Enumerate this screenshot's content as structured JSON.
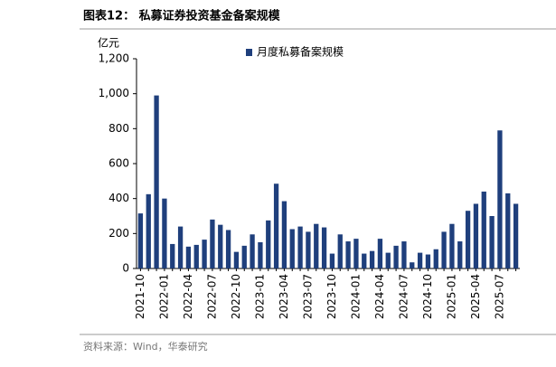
{
  "chart_data": {
    "type": "bar",
    "title": "图表12：  私募证券投资基金备案规模",
    "y_label": "亿元",
    "source": "资料来源：Wind，华泰研究",
    "categories": [
      "2021-10",
      null,
      null,
      "2022-01",
      null,
      null,
      "2022-04",
      null,
      null,
      "2022-07",
      null,
      null,
      "2022-10",
      null,
      null,
      "2023-01",
      null,
      null,
      "2023-04",
      null,
      null,
      "2023-07",
      null,
      null,
      "2023-10",
      null,
      null,
      "2024-01",
      null,
      null,
      "2024-04",
      null,
      null,
      "2024-07",
      null,
      null,
      "2024-10",
      null,
      null,
      "2025-01",
      null,
      null,
      "2025-04",
      null,
      null,
      "2025-07",
      null,
      null
    ],
    "series": [
      {
        "name": "月度私募备案规模",
        "color": "#1f3f7c",
        "values": [
          315,
          425,
          990,
          400,
          140,
          240,
          125,
          135,
          165,
          280,
          250,
          220,
          95,
          130,
          195,
          150,
          275,
          485,
          385,
          225,
          240,
          210,
          255,
          235,
          85,
          195,
          155,
          170,
          85,
          100,
          170,
          90,
          130,
          155,
          35,
          90,
          80,
          110,
          210,
          255,
          155,
          330,
          370,
          440,
          300,
          790,
          430,
          370
        ]
      }
    ],
    "ylim": [
      0,
      1200
    ],
    "yticks": [
      0,
      200,
      400,
      600,
      800,
      {
        "value": 1000,
        "label": "1,000"
      },
      {
        "value": 1200,
        "label": "1,200"
      }
    ],
    "legend": "top"
  }
}
